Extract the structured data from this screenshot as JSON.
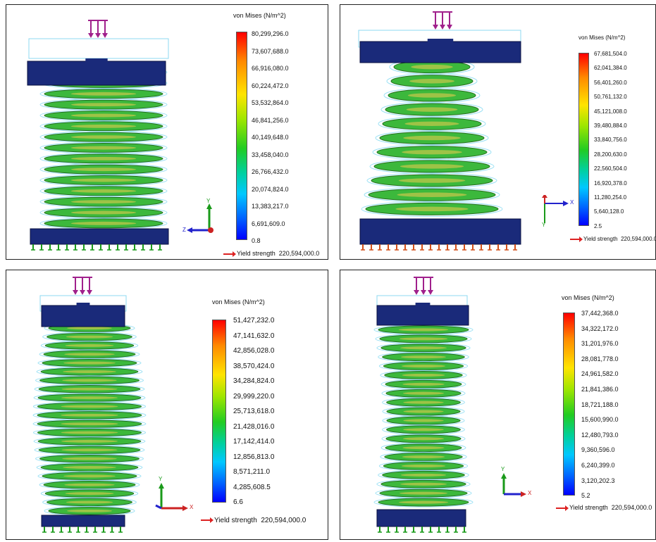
{
  "panels": [
    {
      "title": "von Mises (N/m^2)",
      "ticks": [
        "80,299,296.0",
        "73,607,688.0",
        "66,916,080.0",
        "60,224,472.0",
        "53,532,864.0",
        "46,841,256.0",
        "40,149,648.0",
        "33,458,040.0",
        "26,766,432.0",
        "20,074,824.0",
        "13,383,217.0",
        "6,691,609.0",
        "0.8"
      ],
      "yield_label": "Yield strength",
      "yield_value": "220,594,000.0",
      "triad": {
        "up": "Y",
        "side": "Z"
      },
      "spring_shape": "cylindrical"
    },
    {
      "title": "von Mises (N/m^2)",
      "ticks": [
        "67,681,504.0",
        "62,041,384.0",
        "56,401,260.0",
        "50,761,132.0",
        "45,121,008.0",
        "39,480,884.0",
        "33,840,756.0",
        "28,200,630.0",
        "22,560,504.0",
        "16,920,378.0",
        "11,280,254.0",
        "5,640,128.0",
        "2.5"
      ],
      "yield_label": "Yield strength",
      "yield_value": "220,594,000.0",
      "triad": {
        "up": "Y",
        "side": "X"
      },
      "spring_shape": "conical"
    },
    {
      "title": "von Mises (N/m^2)",
      "ticks": [
        "51,427,232.0",
        "47,141,632.0",
        "42,856,028.0",
        "38,570,424.0",
        "34,284,824.0",
        "29,999,220.0",
        "25,713,618.0",
        "21,428,016.0",
        "17,142,414.0",
        "12,856,813.0",
        "8,571,211.0",
        "4,285,608.5",
        "6.6"
      ],
      "yield_label": "Yield strength",
      "yield_value": "220,594,000.0",
      "triad": {
        "up": "Y",
        "side": "X"
      },
      "spring_shape": "barrel"
    },
    {
      "title": "von Mises (N/m^2)",
      "ticks": [
        "37,442,368.0",
        "34,322,172.0",
        "31,201,976.0",
        "28,081,778.0",
        "24,961,582.0",
        "21,841,386.0",
        "18,721,188.0",
        "15,600,990.0",
        "12,480,793.0",
        "9,360,596.0",
        "6,240,399.0",
        "3,120,202.3",
        "5.2"
      ],
      "yield_label": "Yield strength",
      "yield_value": "220,594,000.0",
      "triad": {
        "up": "Y",
        "side": "X"
      },
      "spring_shape": "hourglass"
    }
  ]
}
